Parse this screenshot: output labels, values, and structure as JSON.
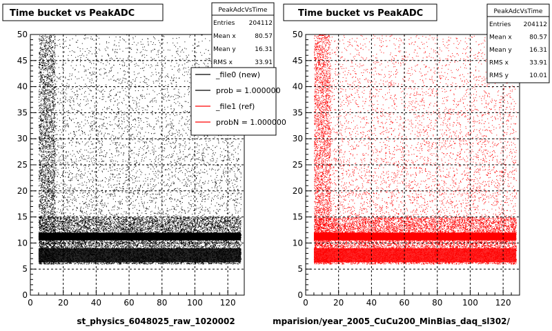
{
  "chart_data": [
    {
      "type": "scatter",
      "title": "Time bucket vs PeakADC",
      "xlabel": "st_physics_6048025_raw_1020002",
      "ylabel": "",
      "xlim": [
        0,
        130
      ],
      "ylim": [
        0,
        50
      ],
      "x_ticks": [
        0,
        20,
        40,
        60,
        80,
        100,
        120
      ],
      "y_ticks": [
        0,
        5,
        10,
        15,
        20,
        25,
        30,
        35,
        40,
        45,
        50
      ],
      "grid": true,
      "marker_color": "#000000",
      "stats": {
        "name": "PeakAdcVsTime",
        "rows": [
          {
            "label": "Entries",
            "value": "204112"
          },
          {
            "label": "Mean x",
            "value": "80.57"
          },
          {
            "label": "Mean y",
            "value": "16.31"
          },
          {
            "label": "RMS x",
            "value": "33.91"
          }
        ]
      },
      "legend": {
        "placement": "top-right",
        "entries": [
          {
            "label": "_file0 (new)",
            "color": "#000000"
          },
          {
            "label": "prob = 1.000000",
            "color": "#000000"
          },
          {
            "label": "_file1 (ref)",
            "color": "#ff0000"
          },
          {
            "label": "probN = 1.000000",
            "color": "#ff0000"
          }
        ]
      },
      "density": {
        "x_range": [
          5,
          128
        ],
        "y_range": [
          6,
          50
        ],
        "band_y": [
          10.5,
          12
        ],
        "dense_below_y": 15
      }
    },
    {
      "type": "scatter",
      "title": "Time bucket vs PeakADC",
      "xlabel": "mparision/year_2005_CuCu200_MinBias_daq_sl302/",
      "ylabel": "",
      "xlim": [
        0,
        130
      ],
      "ylim": [
        0,
        50
      ],
      "x_ticks": [
        0,
        20,
        40,
        60,
        80,
        100,
        120
      ],
      "y_ticks": [
        0,
        5,
        10,
        15,
        20,
        25,
        30,
        35,
        40,
        45,
        50
      ],
      "grid": true,
      "marker_color": "#ff0000",
      "stats": {
        "name": "PeakAdcVsTime",
        "rows": [
          {
            "label": "Entries",
            "value": "204112"
          },
          {
            "label": "Mean x",
            "value": "80.57"
          },
          {
            "label": "Mean y",
            "value": "16.31"
          },
          {
            "label": "RMS x",
            "value": "33.91"
          },
          {
            "label": "RMS y",
            "value": "10.01"
          }
        ]
      },
      "density": {
        "x_range": [
          5,
          128
        ],
        "y_range": [
          6,
          50
        ],
        "band_y": [
          10.5,
          12
        ],
        "dense_below_y": 15
      }
    }
  ]
}
